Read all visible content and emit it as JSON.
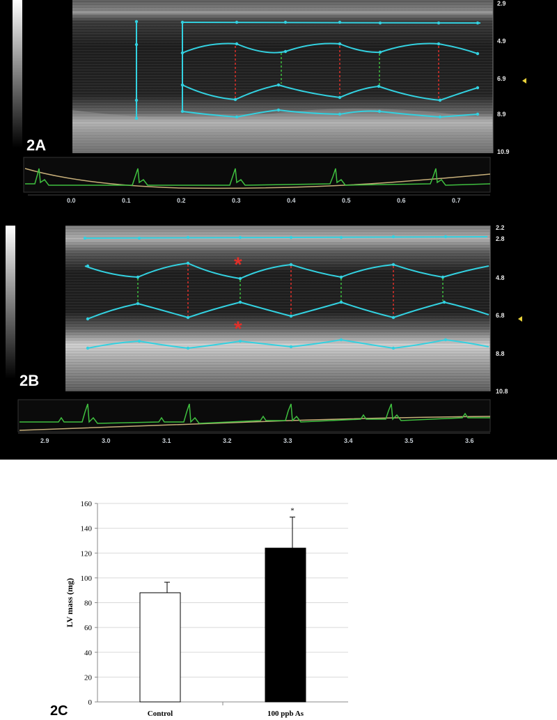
{
  "panel_a": {
    "label": "2A",
    "depth_ticks": [
      "2.9",
      "4.9",
      "6.9",
      "8.9",
      "10.9"
    ],
    "time_ticks": [
      "0.0",
      "0.1",
      "0.2",
      "0.3",
      "0.4",
      "0.5",
      "0.6",
      "0.7"
    ],
    "trace_color": "#33d1e0",
    "ecg_color": "#3fbf3f"
  },
  "panel_b": {
    "label": "2B",
    "depth_ticks": [
      "2.2",
      "2.8",
      "4.8",
      "6.8",
      "8.8",
      "10.8"
    ],
    "time_ticks": [
      "2.9",
      "3.0",
      "3.1",
      "3.2",
      "3.3",
      "3.4",
      "3.5",
      "3.6"
    ],
    "asterisk": "*"
  },
  "panel_c": {
    "label": "2C"
  },
  "chart_data": {
    "type": "bar",
    "categories": [
      "Control",
      "100 ppb As"
    ],
    "values": [
      88,
      124
    ],
    "errors": [
      8.5,
      25
    ],
    "bar_colors": [
      "#ffffff",
      "#000000"
    ],
    "significance": [
      "",
      "*"
    ],
    "ylabel": "LV mass (mg)",
    "ylim": [
      0,
      160
    ],
    "yticks": [
      "0",
      "20",
      "40",
      "60",
      "80",
      "100",
      "120",
      "140",
      "160"
    ],
    "grid": true
  }
}
